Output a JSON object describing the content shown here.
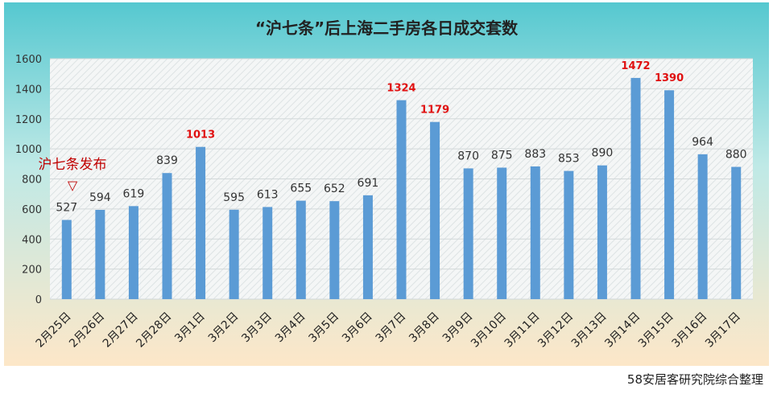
{
  "colors": {
    "bar": "#5b9bd5",
    "highlight_label": "#e01010",
    "normal_label": "#333333",
    "annotation": "#c00000",
    "background_top": "#55c8d0",
    "background_bottom": "#fde7c8"
  },
  "chart_data": {
    "type": "bar",
    "title": "“沪七条”后上海二手房各日成交套数",
    "xlabel": "",
    "ylabel": "",
    "ylim": [
      0,
      1600
    ],
    "yticks": [
      "0",
      "200",
      "400",
      "600",
      "800",
      "1000",
      "1200",
      "1400",
      "1600"
    ],
    "grid": true,
    "categories": [
      "2月25日",
      "2月26日",
      "2月27日",
      "2月28日",
      "3月1日",
      "3月2日",
      "3月3日",
      "3月4日",
      "3月5日",
      "3月6日",
      "3月7日",
      "3月8日",
      "3月9日",
      "3月10日",
      "3月11日",
      "3月12日",
      "3月13日",
      "3月14日",
      "3月15日",
      "3月16日",
      "3月17日"
    ],
    "values": [
      527,
      594,
      619,
      839,
      1013,
      595,
      613,
      655,
      652,
      691,
      1324,
      1179,
      870,
      875,
      883,
      853,
      890,
      1472,
      1390,
      964,
      880
    ],
    "data_labels": [
      "527",
      "594",
      "619",
      "839",
      "1013",
      "595",
      "613",
      "655",
      "652",
      "691",
      "1324",
      "1179",
      "870",
      "875",
      "883",
      "853",
      "890",
      "1472",
      "1390",
      "964",
      "880"
    ],
    "highlighted": [
      false,
      false,
      false,
      false,
      true,
      false,
      false,
      false,
      false,
      false,
      true,
      true,
      false,
      false,
      false,
      false,
      false,
      true,
      true,
      false,
      false
    ],
    "annotation": {
      "text": "沪七条发布",
      "marker": "▽"
    }
  },
  "source": "58安居客研究院综合整理"
}
